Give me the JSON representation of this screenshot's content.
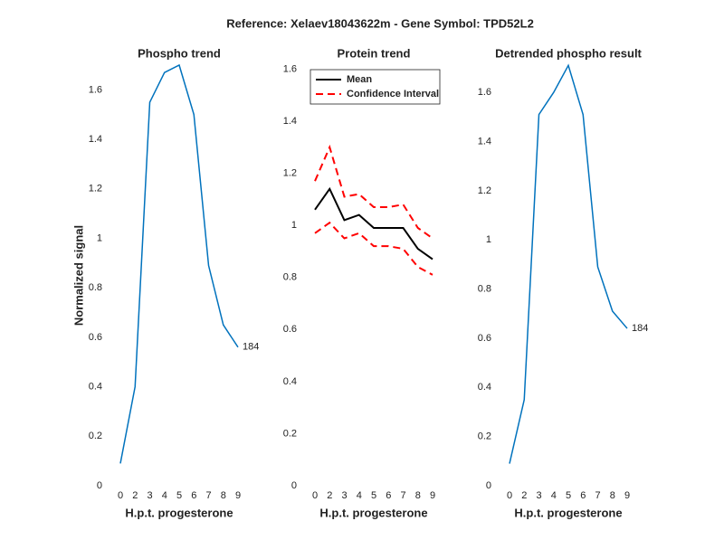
{
  "title": "Reference:  Xelaev18043622m - Gene Symbol:  TPD52L2",
  "chart_data": [
    {
      "type": "line",
      "title": "Phospho trend",
      "x_label": "H.p.t. progesterone",
      "y_label": "Normalized signal",
      "categories": [
        0,
        2,
        3,
        4,
        5,
        6,
        7,
        8,
        9
      ],
      "series": [
        {
          "color": "#0072bd",
          "values": [
            0.09,
            0.4,
            1.55,
            1.67,
            1.7,
            1.5,
            0.89,
            0.65,
            0.56
          ]
        }
      ],
      "annotations": [
        {
          "text": "184"
        }
      ],
      "ylim": [
        0,
        1.7
      ],
      "yticks": [
        0,
        0.2,
        0.4,
        0.6,
        0.8,
        1,
        1.2,
        1.4,
        1.6
      ]
    },
    {
      "type": "line",
      "title": "Protein trend",
      "x_label": "H.p.t. progesterone",
      "categories": [
        0,
        2,
        3,
        4,
        5,
        6,
        7,
        8,
        9
      ],
      "series": [
        {
          "name": "Mean",
          "color": "#000000",
          "values": [
            1.06,
            1.14,
            1.02,
            1.04,
            0.99,
            0.99,
            0.99,
            0.91,
            0.87
          ]
        },
        {
          "name": "Confidence Interval",
          "color": "#ff0000",
          "dashed": true,
          "values": [
            1.17,
            1.3,
            1.11,
            1.12,
            1.07,
            1.07,
            1.08,
            0.99,
            0.95
          ]
        },
        {
          "color": "#ff0000",
          "dashed": true,
          "values": [
            0.97,
            1.01,
            0.95,
            0.97,
            0.92,
            0.92,
            0.91,
            0.84,
            0.81
          ]
        }
      ],
      "legend": "top-left",
      "ylim": [
        0,
        1.65
      ],
      "yticks": [
        0,
        0.2,
        0.4,
        0.6,
        0.8,
        1,
        1.2,
        1.4,
        1.6
      ]
    },
    {
      "type": "line",
      "title": "Detrended phospho result",
      "x_label": "H.p.t. progesterone",
      "categories": [
        0,
        2,
        3,
        4,
        5,
        6,
        7,
        8,
        9
      ],
      "series": [
        {
          "color": "#0072bd",
          "values": [
            0.09,
            0.35,
            1.51,
            1.6,
            1.71,
            1.51,
            0.89,
            0.71,
            0.64
          ]
        }
      ],
      "annotations": [
        {
          "text": "184"
        }
      ],
      "ylim": [
        0,
        1.7
      ],
      "yticks": [
        0,
        0.2,
        0.4,
        0.6,
        0.8,
        1,
        1.2,
        1.4,
        1.6
      ]
    }
  ]
}
